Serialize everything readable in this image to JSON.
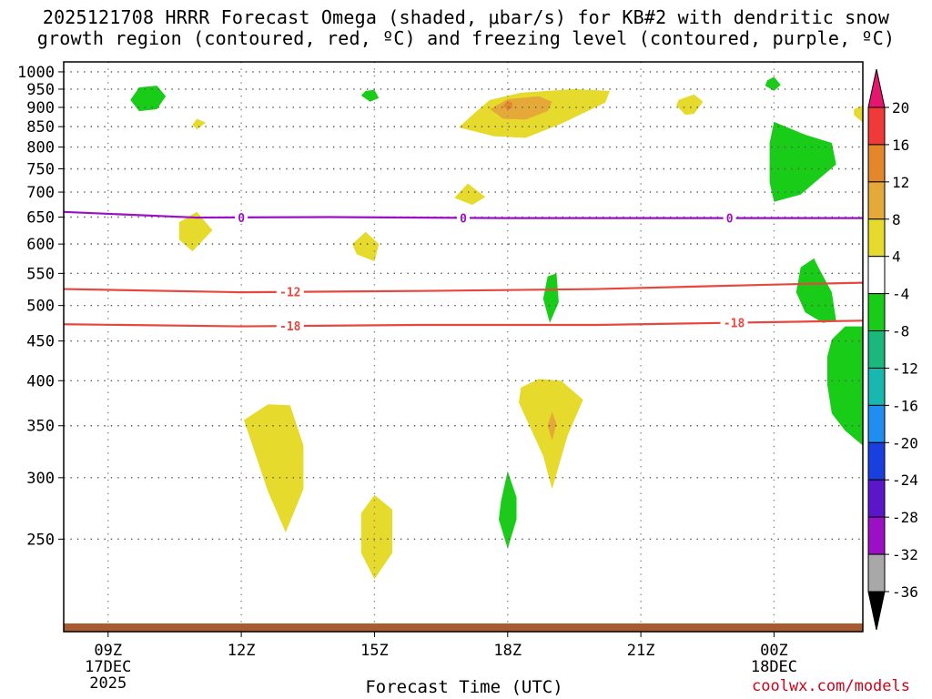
{
  "title": {
    "line1": "2025121708 HRRR Forecast Omega (shaded, μbar/s) for KB#2 with dendritic snow",
    "line2": "growth region (contoured, red, ºC) and freezing level (contoured, purple, ºC)"
  },
  "xaxis_title": "Forecast Time (UTC)",
  "credit": "coolwx.com/models",
  "chart_data": {
    "type": "time-height contour",
    "xlabel": "Forecast Time (UTC)",
    "ylabel": "",
    "x_range_hours": [
      8.0,
      26.0
    ],
    "y_range_mb": [
      1030,
      190
    ],
    "y_scale": "log-pressure",
    "grid": true,
    "x_ticks": [
      {
        "hour": 9,
        "label": "09Z",
        "sub1": "17DEC",
        "sub2": "2025"
      },
      {
        "hour": 12,
        "label": "12Z",
        "sub1": "",
        "sub2": ""
      },
      {
        "hour": 15,
        "label": "15Z",
        "sub1": "",
        "sub2": ""
      },
      {
        "hour": 18,
        "label": "18Z",
        "sub1": "",
        "sub2": ""
      },
      {
        "hour": 21,
        "label": "21Z",
        "sub1": "",
        "sub2": ""
      },
      {
        "hour": 24,
        "label": "00Z",
        "sub1": "18DEC",
        "sub2": ""
      }
    ],
    "y_ticks": [
      250,
      300,
      350,
      400,
      450,
      500,
      550,
      600,
      650,
      700,
      750,
      800,
      850,
      900,
      950,
      1000
    ],
    "contours": [
      {
        "name": "-18",
        "color": "#e8473f",
        "label": "-18",
        "label_at": [
          13.1,
          23.1
        ],
        "points": [
          [
            8,
            473
          ],
          [
            12,
            470
          ],
          [
            16,
            472
          ],
          [
            20,
            472
          ],
          [
            24,
            476
          ],
          [
            26,
            478
          ]
        ]
      },
      {
        "name": "-12",
        "color": "#e8473f",
        "label": "-12",
        "label_at": [
          13.1
        ],
        "points": [
          [
            8,
            525
          ],
          [
            12,
            520
          ],
          [
            16,
            522
          ],
          [
            20,
            525
          ],
          [
            24,
            532
          ],
          [
            26,
            535
          ]
        ]
      },
      {
        "name": "0",
        "color": "#9b10c4",
        "label": "0",
        "label_at": [
          12.0,
          17.0,
          23.0
        ],
        "points": [
          [
            8,
            660
          ],
          [
            11,
            649
          ],
          [
            14,
            650
          ],
          [
            18,
            648
          ],
          [
            22,
            648
          ],
          [
            26,
            648
          ]
        ]
      }
    ],
    "omega_regions": [
      {
        "level": "4 to 8",
        "color": "#e6da2c",
        "polygon": [
          [
            12.06,
            356
          ],
          [
            12.6,
            288
          ],
          [
            13.0,
            255
          ],
          [
            13.4,
            290
          ],
          [
            13.4,
            330
          ],
          [
            13.1,
            372
          ],
          [
            12.6,
            373
          ]
        ]
      },
      {
        "level": "4 to 8",
        "color": "#e6da2c",
        "polygon": [
          [
            14.7,
            240
          ],
          [
            15.0,
            222
          ],
          [
            15.4,
            240
          ],
          [
            15.4,
            273
          ],
          [
            15.0,
            285
          ],
          [
            14.7,
            270
          ]
        ]
      },
      {
        "level": "4 to 8",
        "color": "#e6da2c",
        "polygon": [
          [
            18.25,
            375
          ],
          [
            18.8,
            320
          ],
          [
            19.0,
            290
          ],
          [
            19.35,
            340
          ],
          [
            19.7,
            378
          ],
          [
            19.2,
            400
          ],
          [
            18.7,
            402
          ],
          [
            18.3,
            392
          ]
        ]
      },
      {
        "level": "8 to 12",
        "color": "#e5a93a",
        "polygon": [
          [
            18.9,
            350
          ],
          [
            19.0,
            335
          ],
          [
            19.1,
            352
          ],
          [
            19.0,
            365
          ]
        ]
      },
      {
        "level": "4 to 8",
        "color": "#e6da2c",
        "polygon": [
          [
            10.6,
            608
          ],
          [
            10.9,
            587
          ],
          [
            11.35,
            625
          ],
          [
            11.0,
            660
          ],
          [
            10.6,
            640
          ]
        ]
      },
      {
        "level": "4 to 8",
        "color": "#e6da2c",
        "polygon": [
          [
            14.6,
            582
          ],
          [
            15.0,
            570
          ],
          [
            15.1,
            600
          ],
          [
            14.8,
            622
          ],
          [
            14.5,
            600
          ]
        ]
      },
      {
        "level": "4 to 8",
        "color": "#e6da2c",
        "polygon": [
          [
            16.8,
            688
          ],
          [
            17.2,
            674
          ],
          [
            17.5,
            690
          ],
          [
            17.1,
            718
          ]
        ]
      },
      {
        "level": "4 to 8",
        "color": "#e6da2c",
        "polygon": [
          [
            16.9,
            848
          ],
          [
            17.7,
            826
          ],
          [
            18.4,
            822
          ],
          [
            19.2,
            857
          ],
          [
            20.2,
            913
          ],
          [
            20.3,
            945
          ],
          [
            19.5,
            950
          ],
          [
            18.3,
            940
          ],
          [
            17.6,
            920
          ],
          [
            17.3,
            890
          ]
        ]
      },
      {
        "level": "8 to 12",
        "color": "#e5a93a",
        "polygon": [
          [
            17.6,
            895
          ],
          [
            17.9,
            870
          ],
          [
            18.4,
            868
          ],
          [
            18.9,
            890
          ],
          [
            19.0,
            915
          ],
          [
            18.7,
            930
          ],
          [
            18.0,
            922
          ]
        ]
      },
      {
        "level": "12 to 16",
        "color": "#e4862a",
        "polygon": [
          [
            17.9,
            904
          ],
          [
            18.0,
            893
          ],
          [
            18.1,
            898
          ],
          [
            18.1,
            913
          ],
          [
            18.0,
            918
          ]
        ]
      },
      {
        "level": "4 to 8",
        "color": "#e6da2c",
        "polygon": [
          [
            10.9,
            855
          ],
          [
            11.0,
            843
          ],
          [
            11.2,
            860
          ],
          [
            11.0,
            870
          ]
        ]
      },
      {
        "level": "4 to 8",
        "color": "#e6da2c",
        "polygon": [
          [
            21.8,
            905
          ],
          [
            22.0,
            880
          ],
          [
            22.2,
            883
          ],
          [
            22.4,
            915
          ],
          [
            22.2,
            935
          ],
          [
            21.85,
            920
          ]
        ]
      },
      {
        "level": "4 to 8",
        "color": "#e6da2c",
        "polygon": [
          [
            25.8,
            880
          ],
          [
            26.0,
            860
          ],
          [
            26.0,
            905
          ],
          [
            25.8,
            895
          ]
        ]
      },
      {
        "level": "-8 to -4",
        "color": "#18cc18",
        "polygon": [
          [
            17.8,
            265
          ],
          [
            18.0,
            243
          ],
          [
            18.2,
            265
          ],
          [
            18.2,
            283
          ],
          [
            18.0,
            306
          ],
          [
            17.85,
            280
          ]
        ]
      },
      {
        "level": "-8 to -4",
        "color": "#18cc18",
        "polygon": [
          [
            18.8,
            510
          ],
          [
            18.95,
            475
          ],
          [
            19.15,
            505
          ],
          [
            19.1,
            550
          ],
          [
            18.9,
            545
          ]
        ]
      },
      {
        "level": "-8 to -4",
        "color": "#18cc18",
        "polygon": [
          [
            25.2,
            395
          ],
          [
            25.3,
            363
          ],
          [
            25.6,
            345
          ],
          [
            26.0,
            330
          ],
          [
            26.0,
            470
          ],
          [
            25.6,
            470
          ],
          [
            25.3,
            452
          ],
          [
            25.2,
            430
          ]
        ]
      },
      {
        "level": "-8 to -4",
        "color": "#18cc18",
        "polygon": [
          [
            24.5,
            520
          ],
          [
            24.7,
            490
          ],
          [
            25.1,
            475
          ],
          [
            25.4,
            478
          ],
          [
            25.3,
            520
          ],
          [
            25.0,
            560
          ],
          [
            24.9,
            575
          ],
          [
            24.6,
            560
          ]
        ]
      },
      {
        "level": "-8 to -4",
        "color": "#18cc18",
        "polygon": [
          [
            23.9,
            720
          ],
          [
            24.0,
            680
          ],
          [
            24.6,
            695
          ],
          [
            25.4,
            760
          ],
          [
            25.3,
            810
          ],
          [
            24.7,
            830
          ],
          [
            24.0,
            862
          ],
          [
            23.9,
            810
          ]
        ]
      },
      {
        "level": "-8 to -4",
        "color": "#18cc18",
        "polygon": [
          [
            9.5,
            920
          ],
          [
            9.7,
            890
          ],
          [
            10.1,
            895
          ],
          [
            10.3,
            930
          ],
          [
            10.1,
            960
          ],
          [
            9.7,
            955
          ]
        ]
      },
      {
        "level": "-8 to -4",
        "color": "#18cc18",
        "polygon": [
          [
            14.7,
            932
          ],
          [
            14.9,
            915
          ],
          [
            15.1,
            925
          ],
          [
            15.0,
            948
          ],
          [
            14.8,
            945
          ]
        ]
      },
      {
        "level": "-8 to -4",
        "color": "#18cc18",
        "polygon": [
          [
            23.8,
            960
          ],
          [
            24.0,
            945
          ],
          [
            24.15,
            962
          ],
          [
            24.0,
            985
          ],
          [
            23.85,
            975
          ]
        ]
      }
    ],
    "colorbar": {
      "labels": [
        "20",
        "16",
        "12",
        "8",
        "4",
        "-4",
        "-8",
        "-12",
        "-16",
        "-20",
        "-24",
        "-28",
        "-32",
        "-36"
      ],
      "colors": [
        "#f03a3a",
        "#e4862a",
        "#e5a93a",
        "#e6da2c",
        "#ffffff",
        "#18cc18",
        "#1ab87c",
        "#18b8b0",
        "#1f8ef0",
        "#1a3fe0",
        "#5a16c8",
        "#9b10c4",
        "#a8a8a8"
      ],
      "top_arrow": "#e8156f",
      "bottom_arrow": "#000000"
    },
    "ground_color": "#a85a30"
  }
}
